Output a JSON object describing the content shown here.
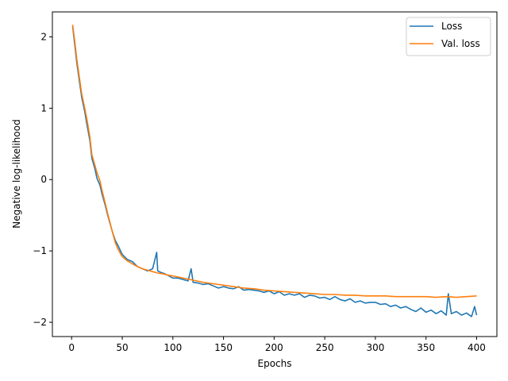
{
  "chart_data": {
    "type": "line",
    "title": "",
    "xlabel": "Epochs",
    "ylabel": "Negative log-likelihood",
    "xlim": [
      -19,
      420
    ],
    "ylim": [
      -2.2,
      2.35
    ],
    "xticks": [
      0,
      50,
      100,
      150,
      200,
      250,
      300,
      350,
      400
    ],
    "xtick_labels": [
      "0",
      "50",
      "100",
      "150",
      "200",
      "250",
      "300",
      "350",
      "400"
    ],
    "yticks": [
      2,
      1,
      0,
      -1,
      -2
    ],
    "ytick_labels": [
      "2",
      "1",
      "0",
      "−1",
      "−2"
    ],
    "grid": false,
    "legend_position": "top-right",
    "series": [
      {
        "name": "Loss",
        "color": "#1f77b4",
        "x": [
          1,
          3,
          5,
          8,
          10,
          13,
          15,
          18,
          20,
          23,
          25,
          28,
          30,
          33,
          36,
          40,
          43,
          46,
          50,
          55,
          60,
          65,
          70,
          75,
          80,
          84,
          85,
          88,
          92,
          96,
          100,
          105,
          110,
          115,
          118,
          120,
          125,
          130,
          135,
          140,
          145,
          150,
          155,
          160,
          165,
          170,
          175,
          180,
          185,
          190,
          195,
          200,
          205,
          210,
          215,
          220,
          225,
          230,
          235,
          240,
          245,
          250,
          255,
          260,
          265,
          270,
          275,
          280,
          285,
          290,
          295,
          300,
          305,
          310,
          315,
          320,
          325,
          330,
          335,
          340,
          345,
          350,
          355,
          360,
          365,
          370,
          372,
          375,
          380,
          385,
          390,
          395,
          398,
          400
        ],
        "y": [
          2.15,
          1.9,
          1.65,
          1.35,
          1.15,
          0.95,
          0.78,
          0.55,
          0.3,
          0.15,
          0.02,
          -0.08,
          -0.2,
          -0.35,
          -0.52,
          -0.72,
          -0.85,
          -0.93,
          -1.05,
          -1.12,
          -1.15,
          -1.22,
          -1.25,
          -1.28,
          -1.25,
          -1.02,
          -1.28,
          -1.3,
          -1.32,
          -1.35,
          -1.38,
          -1.38,
          -1.4,
          -1.42,
          -1.25,
          -1.44,
          -1.45,
          -1.47,
          -1.46,
          -1.49,
          -1.52,
          -1.5,
          -1.52,
          -1.53,
          -1.5,
          -1.55,
          -1.54,
          -1.55,
          -1.56,
          -1.58,
          -1.56,
          -1.6,
          -1.57,
          -1.62,
          -1.6,
          -1.62,
          -1.6,
          -1.65,
          -1.62,
          -1.63,
          -1.66,
          -1.65,
          -1.68,
          -1.64,
          -1.68,
          -1.7,
          -1.67,
          -1.72,
          -1.7,
          -1.73,
          -1.72,
          -1.72,
          -1.75,
          -1.74,
          -1.78,
          -1.76,
          -1.8,
          -1.78,
          -1.82,
          -1.85,
          -1.8,
          -1.86,
          -1.83,
          -1.88,
          -1.84,
          -1.9,
          -1.6,
          -1.88,
          -1.85,
          -1.9,
          -1.87,
          -1.92,
          -1.78,
          -1.9
        ]
      },
      {
        "name": "Val. loss",
        "color": "#ff7f0e",
        "x": [
          1,
          3,
          5,
          8,
          10,
          13,
          15,
          18,
          20,
          23,
          25,
          28,
          30,
          33,
          36,
          40,
          43,
          46,
          50,
          55,
          60,
          65,
          70,
          75,
          80,
          85,
          90,
          95,
          100,
          110,
          120,
          130,
          140,
          150,
          160,
          170,
          180,
          190,
          200,
          210,
          220,
          230,
          240,
          250,
          260,
          270,
          280,
          290,
          300,
          310,
          320,
          330,
          340,
          350,
          360,
          370,
          380,
          390,
          400
        ],
        "y": [
          2.17,
          1.95,
          1.7,
          1.4,
          1.2,
          1.0,
          0.85,
          0.6,
          0.35,
          0.2,
          0.1,
          -0.02,
          -0.15,
          -0.32,
          -0.5,
          -0.72,
          -0.88,
          -0.98,
          -1.08,
          -1.14,
          -1.18,
          -1.22,
          -1.25,
          -1.27,
          -1.29,
          -1.31,
          -1.32,
          -1.34,
          -1.35,
          -1.38,
          -1.41,
          -1.44,
          -1.46,
          -1.48,
          -1.5,
          -1.52,
          -1.53,
          -1.55,
          -1.56,
          -1.57,
          -1.58,
          -1.59,
          -1.6,
          -1.61,
          -1.61,
          -1.62,
          -1.62,
          -1.63,
          -1.63,
          -1.63,
          -1.64,
          -1.64,
          -1.64,
          -1.64,
          -1.65,
          -1.64,
          -1.65,
          -1.64,
          -1.63
        ]
      }
    ]
  }
}
